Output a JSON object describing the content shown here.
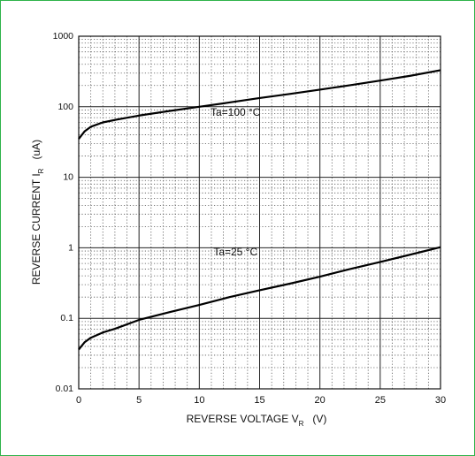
{
  "chart_data": {
    "type": "line",
    "title": "",
    "xlabel": {
      "main": "REVERSE VOLTAGE  V",
      "sub": "R",
      "unit": "(V)"
    },
    "ylabel": {
      "main": "REVERSE CURRENT  I",
      "sub": "R",
      "unit": "(uA)"
    },
    "x_range": [
      0,
      30
    ],
    "y_range": [
      0.01,
      1000
    ],
    "y_scale": "log",
    "x_ticks": [
      "0",
      "5",
      "10",
      "15",
      "20",
      "25",
      "30"
    ],
    "y_ticks": [
      "0.01",
      "0.1",
      "1",
      "10",
      "100",
      "1000"
    ],
    "grid": true,
    "series": [
      {
        "name": "Ta=100 °C",
        "x": [
          0,
          0.5,
          1,
          2,
          3,
          5,
          7.5,
          10,
          12.5,
          15,
          17.5,
          20,
          22.5,
          25,
          27.5,
          30
        ],
        "y": [
          35,
          45,
          52,
          60,
          65,
          75,
          87,
          100,
          115,
          133,
          152,
          175,
          202,
          235,
          275,
          330
        ]
      },
      {
        "name": "Ta=25 °C",
        "x": [
          0,
          0.5,
          1,
          2,
          3,
          5,
          7.5,
          10,
          12.5,
          15,
          17.5,
          20,
          22.5,
          25,
          27.5,
          30
        ],
        "y": [
          0.036,
          0.046,
          0.053,
          0.063,
          0.071,
          0.095,
          0.122,
          0.155,
          0.2,
          0.25,
          0.31,
          0.39,
          0.5,
          0.63,
          0.8,
          1.02
        ]
      }
    ],
    "annotations": [
      {
        "text": "Ta=100 °C",
        "x": 13,
        "y": 75
      },
      {
        "text": "Ta=25 °C",
        "x": 13,
        "y": 0.78
      }
    ]
  }
}
